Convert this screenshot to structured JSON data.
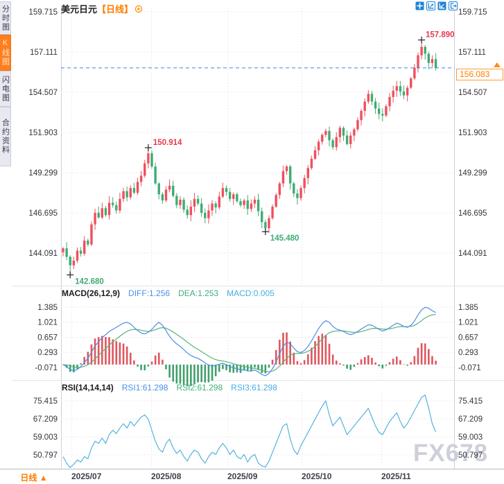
{
  "sidebar": {
    "tabs": [
      {
        "label": "分时图",
        "active": false
      },
      {
        "label": "K线图",
        "active": true
      },
      {
        "label": "闪电图",
        "active": false
      },
      {
        "label": "合约资料",
        "active": false
      }
    ]
  },
  "header": {
    "symbol": "美元日元",
    "period_tag": "【日线】",
    "toolbar_icons": [
      "crosshair",
      "zoom-in",
      "zoom-out",
      "exit"
    ]
  },
  "price_line": {
    "value": "156.083",
    "color": "#ff7d00"
  },
  "bottom_bar": {
    "period_label": "日线",
    "arrow": "▲"
  },
  "watermark": "FX678",
  "chart_data": {
    "type": "candlestick",
    "title": "美元日元【日线】",
    "x_labels": [
      "2025/07",
      "2025/08",
      "2025/09",
      "2025/10",
      "2025/11"
    ],
    "main": {
      "axis_values": [
        159.715,
        157.111,
        154.507,
        151.903,
        149.299,
        146.695,
        144.091
      ],
      "ylim": [
        142.0,
        160.5
      ],
      "current_price": 156.083,
      "up_color": "#ef4f5c",
      "down_color": "#3eac73",
      "first_open": 144.15,
      "closes": [
        144.4,
        143.85,
        143.3,
        143.6,
        144.25,
        144.05,
        144.9,
        144.65,
        145.95,
        146.7,
        146.4,
        147.0,
        146.55,
        147.35,
        147.2,
        146.85,
        147.6,
        148.1,
        147.7,
        148.3,
        148.0,
        148.7,
        149.1,
        149.9,
        150.55,
        149.7,
        148.6,
        147.9,
        147.5,
        148.2,
        148.45,
        147.8,
        147.2,
        147.55,
        146.9,
        146.55,
        147.1,
        147.6,
        147.3,
        146.7,
        146.35,
        146.85,
        147.3,
        147.05,
        147.75,
        148.3,
        148.05,
        147.6,
        147.9,
        147.45,
        147.2,
        147.5,
        146.95,
        147.3,
        147.55,
        146.8,
        146.1,
        145.7,
        146.35,
        147.1,
        147.85,
        148.6,
        149.4,
        149.7,
        148.6,
        147.95,
        147.65,
        148.3,
        148.95,
        149.6,
        150.2,
        150.75,
        151.3,
        151.75,
        152.0,
        151.4,
        150.95,
        151.6,
        152.2,
        151.7,
        151.15,
        151.7,
        152.1,
        152.7,
        153.3,
        153.9,
        154.4,
        153.9,
        153.45,
        153.1,
        153.0,
        153.6,
        154.2,
        154.6,
        154.9,
        154.55,
        154.3,
        154.8,
        155.4,
        156.1,
        156.9,
        157.45,
        157.0,
        156.4,
        156.65,
        156.08
      ],
      "annotations": [
        {
          "index": 2,
          "kind": "low",
          "value": 142.68,
          "label": "142.680",
          "color": "#3eac73"
        },
        {
          "index": 24,
          "kind": "high",
          "value": 150.914,
          "label": "150.914",
          "color": "#e23b4e"
        },
        {
          "index": 57,
          "kind": "low",
          "value": 145.48,
          "label": "145.480",
          "color": "#3eac73"
        },
        {
          "index": 101,
          "kind": "high",
          "value": 157.89,
          "label": "157.890",
          "color": "#e23b4e"
        }
      ]
    },
    "macd": {
      "label": "MACD(26,12,9)",
      "diff_label": "DIFF:1.256",
      "dea_label": "DEA:1.253",
      "macd_label": "MACD:0.005",
      "axis_values": [
        1.385,
        1.021,
        0.657,
        0.293,
        -0.071
      ],
      "colors": {
        "diff": "#4a8fe8",
        "dea": "#57b377",
        "hist_pos": "#e0565e",
        "hist_neg": "#3fa06a"
      },
      "diff": [
        0.0,
        -0.05,
        -0.12,
        -0.15,
        -0.12,
        -0.05,
        0.05,
        0.15,
        0.3,
        0.45,
        0.55,
        0.65,
        0.72,
        0.8,
        0.85,
        0.9,
        0.95,
        1.0,
        1.02,
        0.98,
        0.9,
        0.82,
        0.76,
        0.74,
        0.78,
        0.85,
        0.95,
        1.02,
        0.95,
        0.82,
        0.68,
        0.58,
        0.5,
        0.44,
        0.36,
        0.28,
        0.22,
        0.18,
        0.15,
        0.1,
        0.04,
        -0.01,
        -0.04,
        -0.02,
        0.01,
        0.03,
        0.0,
        -0.05,
        -0.08,
        -0.1,
        -0.13,
        -0.12,
        -0.15,
        -0.16,
        -0.13,
        -0.18,
        -0.24,
        -0.27,
        -0.21,
        -0.1,
        0.06,
        0.26,
        0.44,
        0.54,
        0.5,
        0.4,
        0.31,
        0.29,
        0.34,
        0.44,
        0.57,
        0.72,
        0.87,
        0.99,
        1.06,
        1.02,
        0.92,
        0.86,
        0.83,
        0.8,
        0.75,
        0.72,
        0.75,
        0.8,
        0.86,
        0.91,
        0.96,
        0.95,
        0.9,
        0.85,
        0.81,
        0.84,
        0.89,
        0.95,
        1.0,
        0.97,
        0.92,
        0.9,
        0.95,
        1.05,
        1.2,
        1.32,
        1.38,
        1.36,
        1.3,
        1.256
      ]
    },
    "rsi": {
      "label": "RSI(14,14,14)",
      "rsi1_label": "RSI1:61.298",
      "rsi2_label": "RSI2:61.298",
      "rsi3_label": "RSI3:61.298",
      "axis_values": [
        75.415,
        67.209,
        59.003,
        50.797
      ],
      "color": "#53b3dc",
      "values": [
        50,
        47,
        45,
        46.5,
        48.5,
        47.5,
        50,
        49,
        54,
        57,
        56,
        58.5,
        56,
        60,
        62,
        60.5,
        63,
        65,
        63,
        66,
        64,
        66,
        68,
        69,
        67,
        62,
        57,
        53.5,
        52,
        56,
        58,
        54,
        51.5,
        53,
        50,
        48,
        51,
        53,
        52,
        49,
        47,
        50,
        52,
        51,
        54,
        56,
        54,
        51,
        53,
        50,
        49,
        51,
        47.5,
        50,
        51,
        47,
        45.8,
        45.2,
        48,
        52,
        56,
        60,
        64,
        65,
        58,
        53,
        51,
        55,
        58,
        61,
        64,
        67,
        70,
        73,
        75.4,
        69,
        64,
        66,
        68,
        64,
        60,
        62,
        64,
        66,
        68,
        70,
        72,
        68,
        64,
        61,
        60,
        63,
        66,
        68,
        70,
        66,
        63,
        65,
        68,
        71,
        74,
        77,
        78,
        72,
        65,
        61.3
      ]
    }
  }
}
